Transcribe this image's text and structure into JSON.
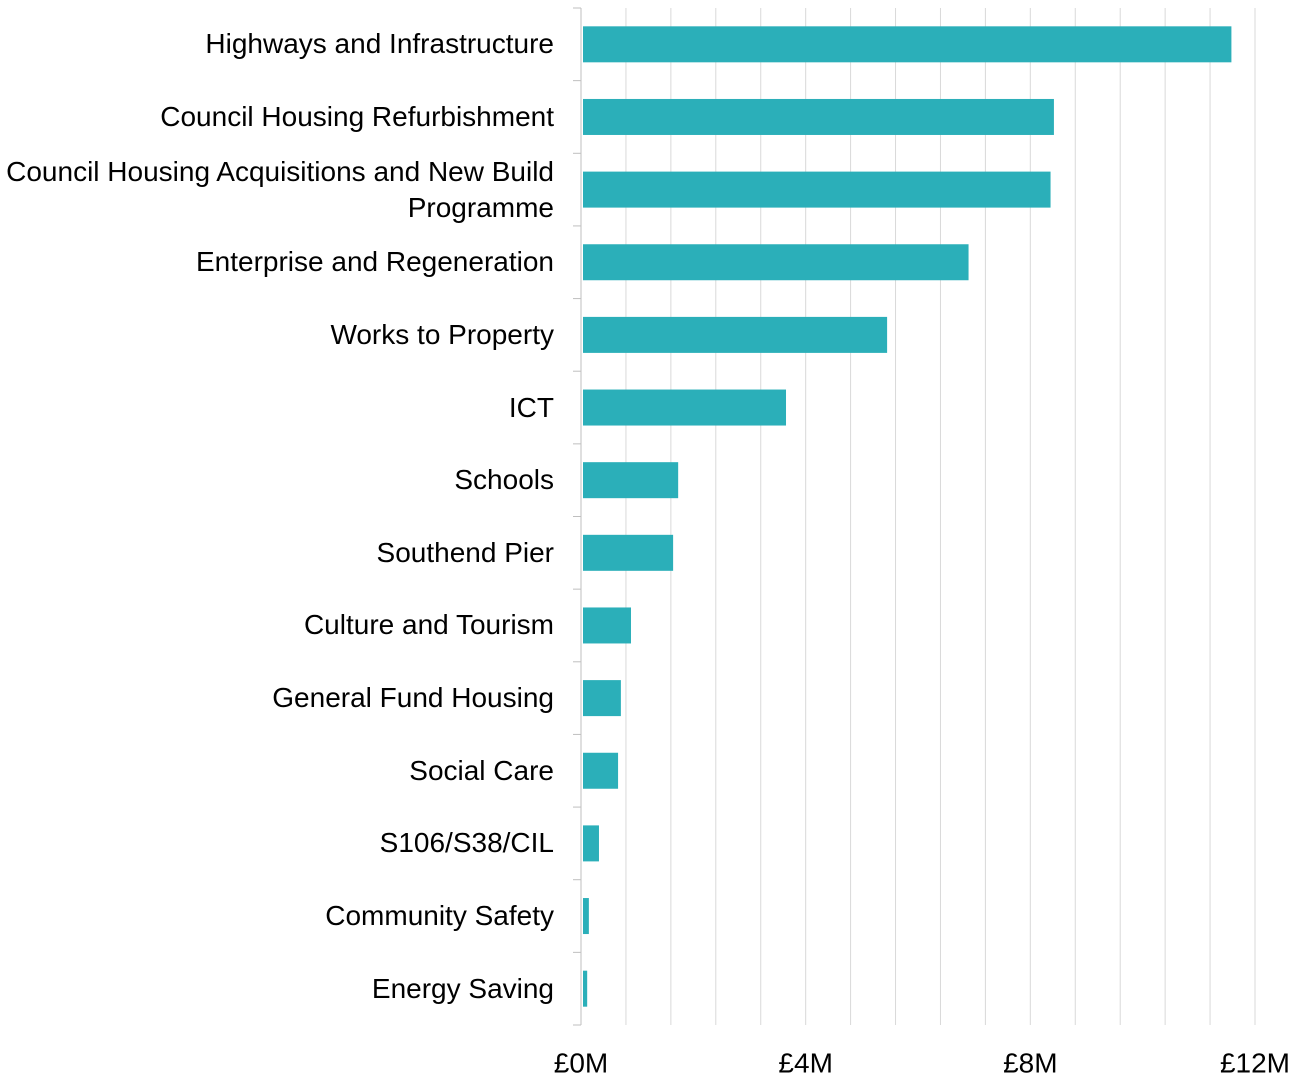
{
  "chart_data": {
    "type": "hbar",
    "categories": [
      "Highways and Infrastructure",
      "Council Housing Refurbishment",
      "Council Housing Acquisitions and New Build Programme",
      "Enterprise and Regeneration",
      "Works to Property",
      "ICT",
      "Schools",
      "Southend Pier",
      "Culture and Tourism",
      "General Fund Housing",
      "Social Care",
      "S106/S38/CIL",
      "Community Safety",
      "Energy Saving"
    ],
    "values": [
      11.58,
      8.42,
      8.36,
      6.9,
      5.45,
      3.65,
      1.73,
      1.64,
      0.89,
      0.71,
      0.66,
      0.32,
      0.14,
      0.11
    ],
    "color": "#2bafb9",
    "xlim": [
      0,
      12
    ],
    "xticks": [
      {
        "value": 0,
        "label": "£0M"
      },
      {
        "value": 4,
        "label": "£4M"
      },
      {
        "value": 8,
        "label": "£8M"
      },
      {
        "value": 12,
        "label": "£12M"
      }
    ],
    "xgrid": [
      0.8,
      1.6,
      2.4,
      3.2,
      4,
      4.8,
      5.6,
      6.4,
      7.2,
      8,
      8.8,
      9.6,
      10.4,
      11.2,
      12
    ],
    "grid": true
  }
}
